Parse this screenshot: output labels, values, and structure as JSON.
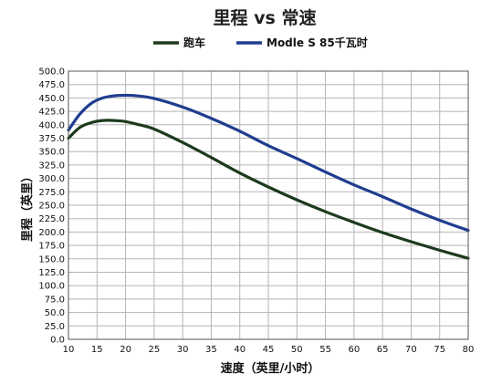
{
  "chart_data": {
    "type": "line",
    "title": "里程 vs 常速",
    "xlabel": "速度（英里/小时）",
    "ylabel": "里程（英里）",
    "xlim": [
      10,
      80
    ],
    "ylim": [
      0,
      500
    ],
    "xticks": [
      "10",
      "15",
      "20",
      "25",
      "30",
      "35",
      "40",
      "45",
      "50",
      "55",
      "60",
      "65",
      "70",
      "75",
      "80"
    ],
    "yticks": [
      "0.0",
      "25.0",
      "50.0",
      "75.0",
      "100.0",
      "125.0",
      "150.0",
      "175.0",
      "200.0",
      "225.0",
      "250.0",
      "275.0",
      "300.0",
      "325.0",
      "350.0",
      "375.0",
      "400.0",
      "425.0",
      "450.0",
      "475.0",
      "500.0"
    ],
    "grid": true,
    "legend_position": "top",
    "series": [
      {
        "name": "跑车",
        "color": "#1d3a1d",
        "x": [
          10,
          12,
          14,
          16,
          18,
          20,
          22,
          25,
          30,
          35,
          40,
          45,
          50,
          55,
          60,
          65,
          70,
          75,
          80
        ],
        "y": [
          375,
          395,
          404,
          408,
          408,
          406,
          401,
          392,
          367,
          339,
          310,
          284,
          260,
          238,
          218,
          199,
          182,
          166,
          151
        ]
      },
      {
        "name": "Modle S 85千瓦时",
        "color": "#1f3d8f",
        "x": [
          10,
          12,
          14,
          16,
          18,
          20,
          22,
          25,
          30,
          35,
          40,
          45,
          50,
          55,
          60,
          65,
          70,
          75,
          80
        ],
        "y": [
          390,
          420,
          440,
          450,
          454,
          455,
          454,
          449,
          433,
          412,
          388,
          361,
          337,
          312,
          288,
          266,
          243,
          222,
          203
        ]
      }
    ]
  }
}
